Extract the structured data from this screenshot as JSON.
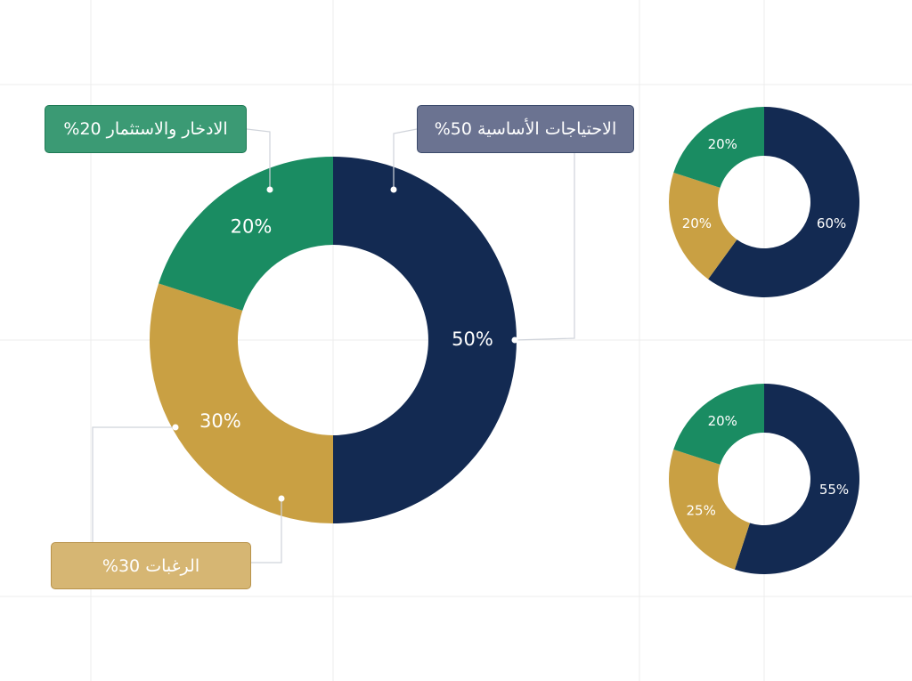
{
  "chart_data": [
    {
      "type": "donut",
      "categories": [
        "الاحتياجات الأساسية 50%",
        "الرغبات 30%",
        "الادخار والاستثمار 20%"
      ],
      "values": [
        50,
        30,
        20
      ],
      "value_labels": [
        "50%",
        "30%",
        "20%"
      ],
      "colors": [
        "#132a52",
        "#c9a043",
        "#1a8c62"
      ]
    },
    {
      "type": "donut",
      "categories": [
        null,
        null,
        null
      ],
      "values": [
        60,
        20,
        20
      ],
      "value_labels": [
        "60%",
        "20%",
        "20%"
      ],
      "colors": [
        "#132a52",
        "#c9a043",
        "#1a8c62"
      ]
    },
    {
      "type": "donut",
      "categories": [
        null,
        null,
        null
      ],
      "values": [
        55,
        25,
        20
      ],
      "value_labels": [
        "55%",
        "25%",
        "20%"
      ],
      "colors": [
        "#132a52",
        "#c9a043",
        "#1a8c62"
      ]
    }
  ]
}
